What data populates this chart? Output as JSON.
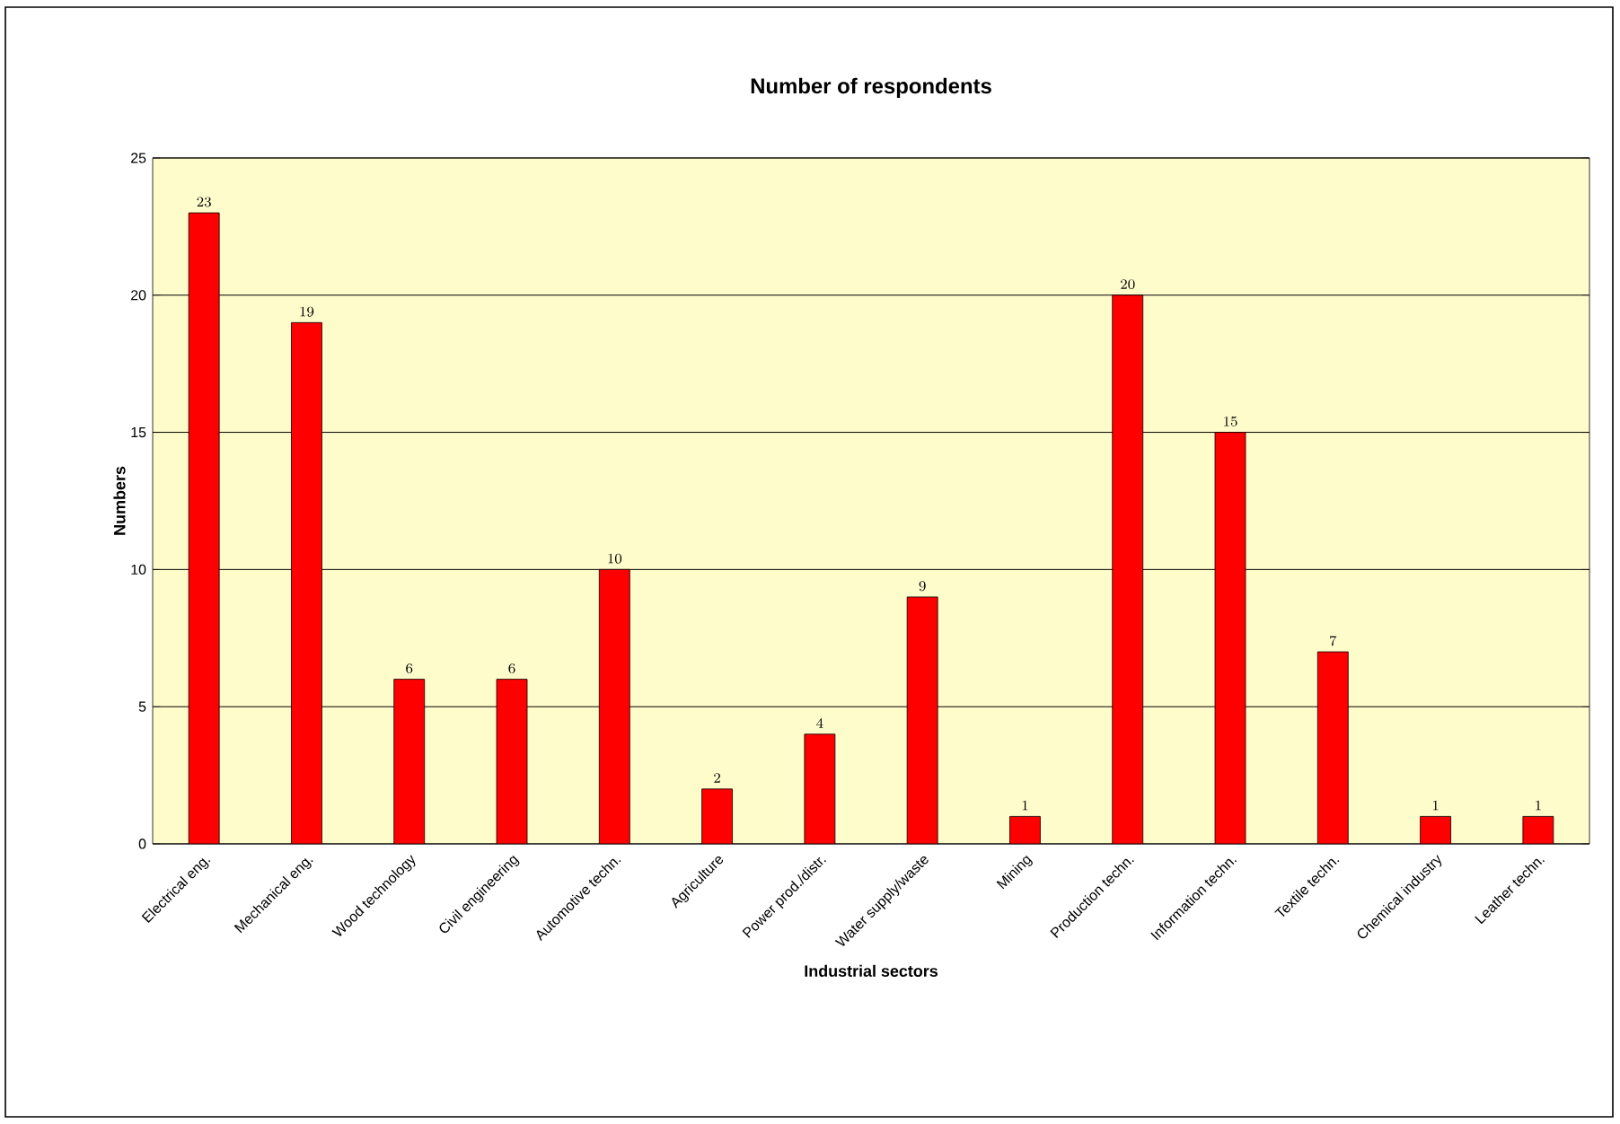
{
  "chart_data": {
    "type": "bar",
    "title": "Number of respondents",
    "xlabel": "Industrial sectors",
    "ylabel": "Numbers",
    "categories": [
      "Electrical eng.",
      "Mechanical eng.",
      "Wood technology",
      "Civil engineering",
      "Automotive techn.",
      "Agriculture",
      "Power prod./distr.",
      "Water supply/waste",
      "Mining",
      "Production techn.",
      "Information techn.",
      "Textile techn.",
      "Chemical industry",
      "Leather techn."
    ],
    "values": [
      23,
      19,
      6,
      6,
      10,
      2,
      4,
      9,
      1,
      20,
      15,
      7,
      1,
      1
    ],
    "color": "#ff0000",
    "ylim": [
      0,
      25
    ],
    "yticks": [
      0,
      5,
      10,
      15,
      20,
      25
    ],
    "grid": "y",
    "data_labels": true
  }
}
